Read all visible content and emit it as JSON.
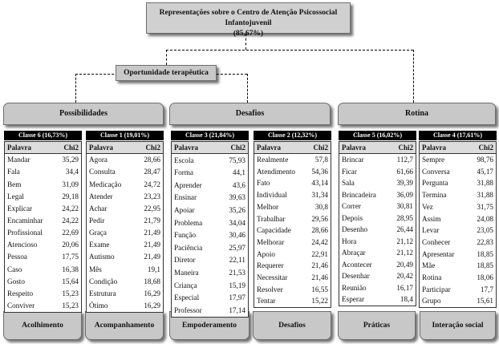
{
  "root": {
    "title": "Representações sobre o Centro de Atenção Psicossocial Infantojuvenil",
    "subtitle": "(85,67%)"
  },
  "middle": {
    "label": "Oportunidade terapêutica"
  },
  "groups": [
    {
      "label": "Possibilidades"
    },
    {
      "label": "Desafios"
    },
    {
      "label": "Rotina"
    }
  ],
  "header": {
    "word": "Palavra",
    "chi": "Chi2"
  },
  "classes": [
    {
      "title": "Classe 6 (16,73%)",
      "bottom": "Acolhimento",
      "rows": [
        [
          "Mandar",
          "35,29"
        ],
        [
          "Fala",
          "34,4"
        ],
        [
          "Bem",
          "31,09"
        ],
        [
          "Legal",
          "29,18"
        ],
        [
          "Explicar",
          "24,22"
        ],
        [
          "Encaminhar",
          "24,22"
        ],
        [
          "Profissional",
          "22,69"
        ],
        [
          "Atencioso",
          "20,06"
        ],
        [
          "Pessoa",
          "17,75"
        ],
        [
          "Caso",
          "16,38"
        ],
        [
          "Gosto",
          "15,64"
        ],
        [
          "Respeito",
          "15,23"
        ],
        [
          "Conviver",
          "15,23"
        ]
      ]
    },
    {
      "title": "Classe 1 (19,01%)",
      "bottom": "Acompanhamento",
      "rows": [
        [
          "Agora",
          "28,66"
        ],
        [
          "Consulta",
          "28,47"
        ],
        [
          "Medicação",
          "24,72"
        ],
        [
          "Atender",
          "23,23"
        ],
        [
          "Achar",
          "22,95"
        ],
        [
          "Pedir",
          "21,79"
        ],
        [
          "Graça",
          "21,49"
        ],
        [
          "Exame",
          "21,49"
        ],
        [
          "Autismo",
          "21,49"
        ],
        [
          "Mês",
          "19,1"
        ],
        [
          "Condição",
          "18,68"
        ],
        [
          "Estrutura",
          "16,29"
        ],
        [
          "Ótimo",
          "16,29"
        ]
      ]
    },
    {
      "title": "Classe 3 (21,84%)",
      "bottom": "Empoderamento",
      "rows": [
        [
          "Escola",
          "75,93"
        ],
        [
          "Forma",
          "44,1"
        ],
        [
          "Aprender",
          "43,6"
        ],
        [
          "Ensinar",
          "39,63"
        ],
        [
          "Apoiar",
          "35,26"
        ],
        [
          "Problema",
          "34,04"
        ],
        [
          "Função",
          "30,46"
        ],
        [
          "Paciência",
          "25,97"
        ],
        [
          "Diretor",
          "22,11"
        ],
        [
          "Maneira",
          "21,53"
        ],
        [
          "Criança",
          "15,19"
        ],
        [
          "Especial",
          "17,97"
        ],
        [
          "Professor",
          "17,14"
        ]
      ]
    },
    {
      "title": "Classe 2 (12,32%)",
      "bottom": "Desafios",
      "rows": [
        [
          "Realmente",
          "57,8"
        ],
        [
          "Atendimento",
          "54,36"
        ],
        [
          "Fato",
          "43,14"
        ],
        [
          "Individual",
          "31,34"
        ],
        [
          "Melhor",
          "30,8"
        ],
        [
          "Trabalhar",
          "29,56"
        ],
        [
          "Capacidade",
          "28,66"
        ],
        [
          "Melhorar",
          "24,42"
        ],
        [
          "Apoio",
          "22,91"
        ],
        [
          "Requerer",
          "21,46"
        ],
        [
          "Necessitar",
          "21,46"
        ],
        [
          "Resolver",
          "16,55"
        ],
        [
          "Tentar",
          "15,22"
        ]
      ]
    },
    {
      "title": "Classe 5 (16,02%)",
      "bottom": "Práticas",
      "rows": [
        [
          "Brincar",
          "112,7"
        ],
        [
          "Ficar",
          "61,66"
        ],
        [
          "Sala",
          "39,39"
        ],
        [
          "Brincadeira",
          "36,09"
        ],
        [
          "Correr",
          "30,81"
        ],
        [
          "Depois",
          "28,95"
        ],
        [
          "Desenho",
          "26,44"
        ],
        [
          "Hora",
          "21,12"
        ],
        [
          "Abraçar",
          "21,12"
        ],
        [
          "Acontecer",
          "20,49"
        ],
        [
          "Desenhar",
          "20,42"
        ],
        [
          "Reunião",
          "16,17"
        ],
        [
          "Esperar",
          "18,4"
        ]
      ]
    },
    {
      "title": "Classe 4 (17,61%)",
      "bottom": "Interação social",
      "rows": [
        [
          "Sempre",
          "98,76"
        ],
        [
          "Conversa",
          "45,17"
        ],
        [
          "Pergunta",
          "31,88"
        ],
        [
          "Termina",
          "31,88"
        ],
        [
          "Vez",
          "31,75"
        ],
        [
          "Assim",
          "24,08"
        ],
        [
          "Levar",
          "23,05"
        ],
        [
          "Conhecer",
          "22,83"
        ],
        [
          "Apresentar",
          "18,85"
        ],
        [
          "Mãe",
          "18,85"
        ],
        [
          "Rotina",
          "18,06"
        ],
        [
          "Participar",
          "17,7"
        ],
        [
          "Grupo",
          "15,61"
        ]
      ]
    }
  ]
}
